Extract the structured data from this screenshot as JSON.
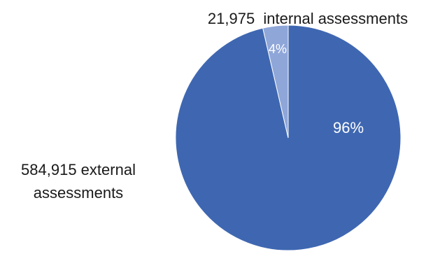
{
  "chart_data": {
    "type": "pie",
    "title": "",
    "start_angle_deg": 0,
    "direction": "clockwise",
    "slices": [
      {
        "value": 584915,
        "percent_label": "96%",
        "category_label_line1": "584,915 external",
        "category_label_line2": "assessments",
        "color": "#3F67B1",
        "percent_text_color": "#ffffff"
      },
      {
        "value": 21975,
        "percent_label": "4%",
        "category_label_line1": "21,975  internal assessments",
        "category_label_line2": "",
        "color": "#8FA6D8",
        "percent_text_color": "#ffffff"
      }
    ],
    "label_text_color": "#1a1a1a"
  }
}
